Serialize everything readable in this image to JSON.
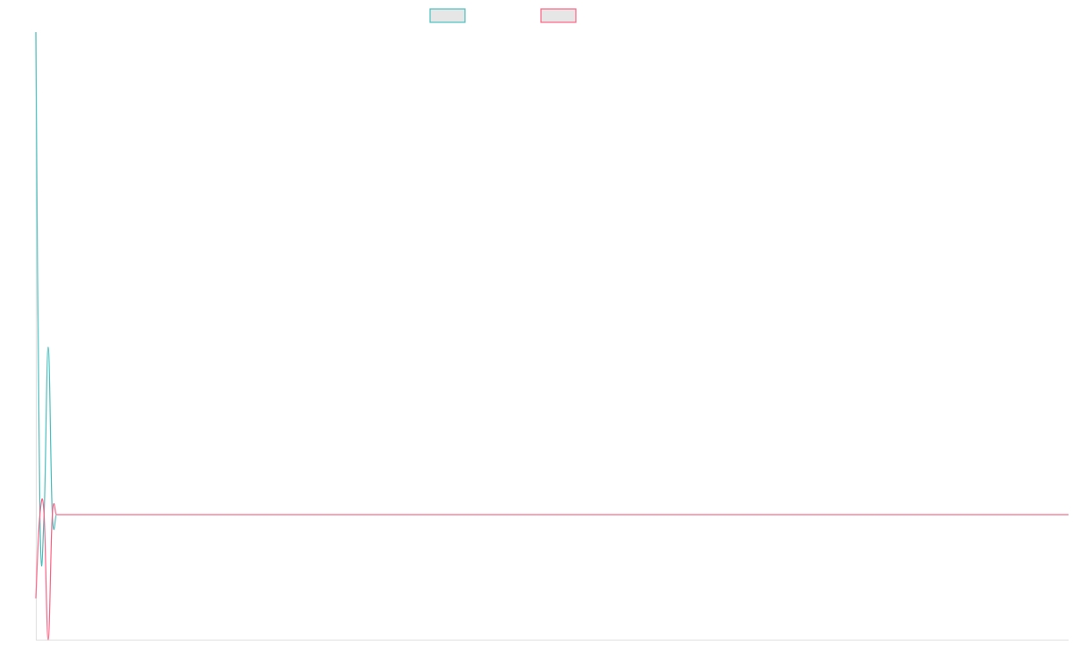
{
  "chart_data": {
    "type": "line",
    "title": "",
    "xlabel": "",
    "ylabel": "",
    "ylim": [
      -1,
      3.86
    ],
    "grid": false,
    "legend_placement": "top",
    "series": [
      {
        "color": "#4bc0c0",
        "legend_fill": "#e6e6e6",
        "values": [
          3.86,
          0,
          0,
          1.34,
          0,
          0,
          0,
          0,
          0,
          0,
          0,
          0,
          0,
          0,
          0,
          0,
          0,
          0,
          0,
          0,
          0,
          0,
          0,
          0,
          0,
          0,
          0,
          0,
          0,
          0,
          0,
          0,
          0,
          0,
          0,
          0,
          0,
          0,
          0,
          0,
          0,
          0,
          0,
          0,
          0,
          0,
          0,
          0,
          0,
          0,
          0,
          0,
          0,
          0,
          0,
          0,
          0,
          0,
          0,
          0,
          0,
          0,
          0,
          0,
          0,
          0,
          0,
          0,
          0,
          0,
          0,
          0,
          0,
          0,
          0,
          0,
          0,
          0,
          0,
          0,
          0,
          0,
          0,
          0,
          0,
          0,
          0,
          0,
          0,
          0,
          0,
          0,
          0,
          0,
          0,
          0,
          0,
          0,
          0,
          0,
          0,
          0,
          0,
          0,
          0,
          0,
          0,
          0,
          0,
          0,
          0,
          0,
          0,
          0,
          0,
          0,
          0,
          0,
          0,
          0,
          0,
          0,
          0,
          0,
          0,
          0,
          0,
          0,
          0,
          0,
          0,
          0,
          0,
          0,
          0,
          0,
          0,
          0,
          0,
          0,
          0,
          0,
          0,
          0,
          0,
          0,
          0,
          0,
          0,
          0,
          0,
          0,
          0,
          0,
          0,
          0,
          0,
          0,
          0,
          0,
          0,
          0,
          0,
          0,
          0,
          0,
          0,
          0,
          0,
          0,
          0,
          0,
          0,
          0,
          0,
          0,
          0,
          0,
          0,
          0,
          0,
          0,
          0,
          0,
          0,
          0,
          0,
          0,
          0,
          0,
          0,
          0,
          0,
          0,
          0,
          0,
          0,
          0,
          0,
          0,
          0,
          0,
          0,
          0,
          0,
          0,
          0,
          0,
          0,
          0,
          0,
          0,
          0,
          0,
          0,
          0,
          0,
          0,
          0,
          0,
          0,
          0,
          0,
          0,
          0,
          0,
          0,
          0,
          0,
          0,
          0,
          0,
          0,
          0,
          0,
          0,
          0,
          0,
          0,
          0,
          0,
          0,
          0,
          0,
          0,
          0,
          0,
          0,
          0,
          0
        ]
      },
      {
        "color": "#ff6384",
        "legend_fill": "#e6e6e6",
        "values": [
          -0.67,
          0,
          0,
          -1,
          0,
          0,
          0,
          0,
          0,
          0,
          0,
          0,
          0,
          0,
          0,
          0,
          0,
          0,
          0,
          0,
          0,
          0,
          0,
          0,
          0,
          0,
          0,
          0,
          0,
          0,
          0,
          0,
          0,
          0,
          0,
          0,
          0,
          0,
          0,
          0,
          0,
          0,
          0,
          0,
          0,
          0,
          0,
          0,
          0,
          0,
          0,
          0,
          0,
          0,
          0,
          0,
          0,
          0,
          0,
          0,
          0,
          0,
          0,
          0,
          0,
          0,
          0,
          0,
          0,
          0,
          0,
          0,
          0,
          0,
          0,
          0,
          0,
          0,
          0,
          0,
          0,
          0,
          0,
          0,
          0,
          0,
          0,
          0,
          0,
          0,
          0,
          0,
          0,
          0,
          0,
          0,
          0,
          0,
          0,
          0,
          0,
          0,
          0,
          0,
          0,
          0,
          0,
          0,
          0,
          0,
          0,
          0,
          0,
          0,
          0,
          0,
          0,
          0,
          0,
          0,
          0,
          0,
          0,
          0,
          0,
          0,
          0,
          0,
          0,
          0,
          0,
          0,
          0,
          0,
          0,
          0,
          0,
          0,
          0,
          0,
          0,
          0,
          0,
          0,
          0,
          0,
          0,
          0,
          0,
          0,
          0,
          0,
          0,
          0,
          0,
          0,
          0,
          0,
          0,
          0,
          0,
          0,
          0,
          0,
          0,
          0,
          0,
          0,
          0,
          0,
          0,
          0,
          0,
          0,
          0,
          0,
          0,
          0,
          0,
          0,
          0,
          0,
          0,
          0,
          0,
          0,
          0,
          0,
          0,
          0,
          0,
          0,
          0,
          0,
          0,
          0,
          0,
          0,
          0,
          0,
          0,
          0,
          0,
          0,
          0,
          0,
          0,
          0,
          0,
          0,
          0,
          0,
          0,
          0,
          0,
          0,
          0,
          0,
          0,
          0,
          0,
          0,
          0,
          0,
          0,
          0,
          0,
          0,
          0,
          0,
          0,
          0,
          0,
          0,
          0,
          0,
          0,
          0,
          0,
          0,
          0,
          0,
          0,
          0,
          0,
          0,
          0,
          0,
          0,
          0
        ]
      }
    ],
    "axis_color": "#e0e0e0"
  }
}
